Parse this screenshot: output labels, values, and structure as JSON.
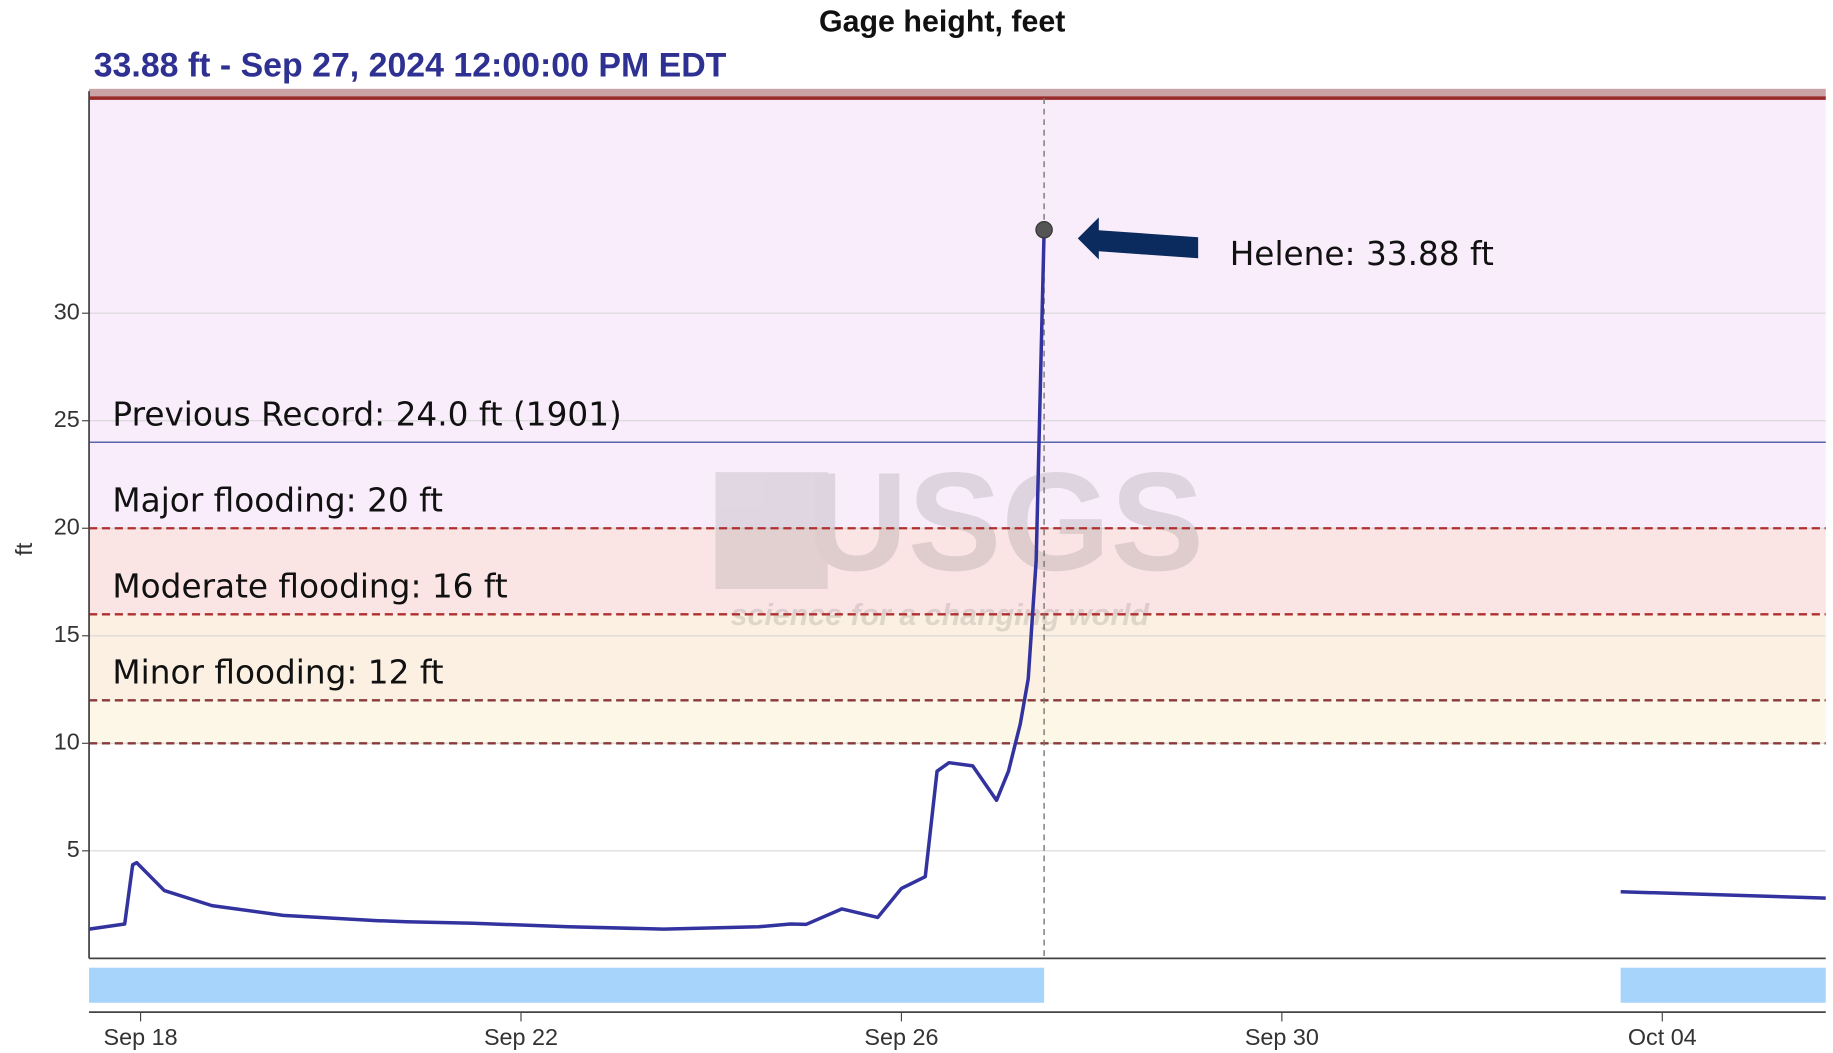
{
  "chart_data": {
    "type": "line",
    "title": "Gage height, feet",
    "subtitle": "33.88 ft - Sep 27, 2024 12:00:00 PM EDT",
    "ylabel": "ft",
    "color": "#3333a0",
    "x": [
      "2024-09-17T11:00",
      "2024-09-17T20:00",
      "2024-09-17T22:00",
      "2024-09-17T23:00",
      "2024-09-18T06:00",
      "2024-09-18T18:00",
      "2024-09-19T12:00",
      "2024-09-20T12:00",
      "2024-09-20T19:00",
      "2024-09-21T12:00",
      "2024-09-22T12:00",
      "2024-09-23T12:00",
      "2024-09-24T12:00",
      "2024-09-24T20:00",
      "2024-09-25T00:00",
      "2024-09-25T09:00",
      "2024-09-25T18:00",
      "2024-09-26T00:00",
      "2024-09-26T06:00",
      "2024-09-26T09:00",
      "2024-09-26T12:00",
      "2024-09-26T18:00",
      "2024-09-27T00:00",
      "2024-09-27T03:00",
      "2024-09-27T06:00",
      "2024-09-27T08:00",
      "2024-09-27T10:00",
      "2024-09-27T12:00",
      "2024-09-30T12:00",
      "2024-10-03T13:30",
      "2024-10-05T17:15"
    ],
    "values": [
      1.36,
      1.6,
      4.35,
      4.45,
      3.15,
      2.45,
      2.0,
      1.75,
      1.7,
      1.63,
      1.47,
      1.36,
      1.47,
      1.6,
      1.58,
      2.3,
      1.9,
      3.25,
      3.8,
      8.7,
      9.1,
      8.95,
      7.35,
      8.7,
      10.9,
      13.0,
      18.5,
      33.88,
      null,
      3.1,
      2.8
    ],
    "xlim": [
      "2024-09-17T11:00",
      "2024-10-05T17:15"
    ],
    "xticks": [
      {
        "value": "2024-09-18T00:00",
        "label": "Sep 18"
      },
      {
        "value": "2024-09-22T00:00",
        "label": "Sep 22"
      },
      {
        "value": "2024-09-26T00:00",
        "label": "Sep 26"
      },
      {
        "value": "2024-09-30T00:00",
        "label": "Sep 30"
      },
      {
        "value": "2024-10-04T00:00",
        "label": "Oct 04"
      }
    ],
    "ylim": [
      0,
      40
    ],
    "yticks": [
      5,
      10,
      15,
      20,
      25,
      30
    ],
    "grid": true,
    "bands": [
      {
        "from": 20,
        "to": 40,
        "color": "#f9edfb"
      },
      {
        "from": 16,
        "to": 20,
        "color": "#fbe4e4"
      },
      {
        "from": 12,
        "to": 16,
        "color": "#fbf0e2"
      },
      {
        "from": 10,
        "to": 12,
        "color": "#fdf7e8"
      }
    ],
    "thresholds": [
      {
        "label": "Previous Record: 24.0 ft (1901)",
        "value": 24.0,
        "color": "#5566aa",
        "dashed": false
      },
      {
        "label": "Major flooding: 20 ft",
        "value": 20,
        "color": "#b03030",
        "dashed": true
      },
      {
        "label": "Moderate flooding: 16 ft",
        "value": 16,
        "color": "#b03030",
        "dashed": true
      },
      {
        "label": "Minor flooding: 12 ft",
        "value": 12,
        "color": "#8a3a3a",
        "dashed": true
      },
      {
        "value": 10,
        "color": "#8a3a3a",
        "dashed": true
      },
      {
        "value": 40,
        "color": "#9a2a2a",
        "dashed": false
      }
    ],
    "annotation": "Helene: 33.88 ft",
    "watermark": {
      "logo": "USGS",
      "tagline": "science for a changing world"
    }
  }
}
